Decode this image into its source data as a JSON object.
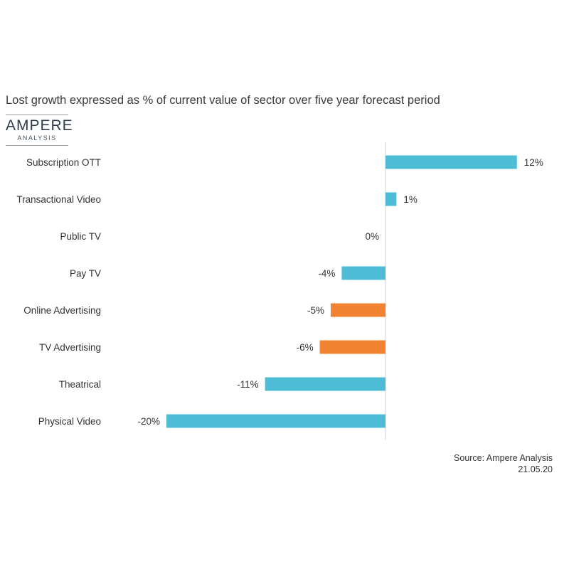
{
  "title": "Lost growth expressed as % of current value of sector over five year forecast period",
  "logo": {
    "name": "AMPERE",
    "subtitle": "ANALYSIS"
  },
  "source": {
    "line1": "Source: Ampere Analysis",
    "line2": "21.05.20"
  },
  "colors": {
    "default_bar": "#4dbcd4",
    "highlight_bar": "#f08232",
    "axis": "#d0d0d0"
  },
  "chart_data": {
    "type": "bar",
    "orientation": "horizontal",
    "title": "Lost growth expressed as % of current value of sector over five year forecast period",
    "categories": [
      "Subscription OTT",
      "Transactional Video",
      "Public TV",
      "Pay TV",
      "Online Advertising",
      "TV Advertising",
      "Theatrical",
      "Physical Video"
    ],
    "values": [
      12,
      1,
      0,
      -4,
      -5,
      -6,
      -11,
      -20
    ],
    "value_labels": [
      "12%",
      "1%",
      "0%",
      "-4%",
      "-5%",
      "-6%",
      "-11%",
      "-20%"
    ],
    "highlighted": [
      "Online Advertising",
      "TV Advertising"
    ],
    "unit": "%",
    "xlim": [
      -20,
      12
    ],
    "xlabel": "",
    "ylabel": "",
    "grid": false,
    "legend": "none"
  }
}
